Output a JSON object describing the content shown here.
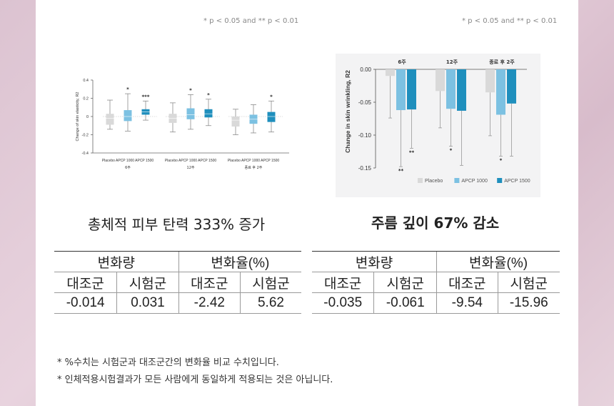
{
  "p_note_left": "* p < 0.05 and ** p < 0.01",
  "p_note_right": "* p < 0.05 and ** p < 0.01",
  "colors": {
    "placebo": "#d9d9d9",
    "apcp1000": "#7cc1e2",
    "apcp1500": "#1f8fbd",
    "whisker": "#8c8c8c"
  },
  "chart_data": [
    {
      "type": "box",
      "ylabel": "Change of skin elasticity, R2",
      "ylim": [
        -0.4,
        0.4
      ],
      "yticks": [
        "0.4",
        "0.2",
        "0",
        "-0.2",
        "-0.4"
      ],
      "group_labels": [
        "6주",
        "12주",
        "종료 후 2주"
      ],
      "category_labels": [
        "Placebo APCP 1000 APCP 1500",
        "Placebo APCP 1000 APCP 1500",
        "Placebo APCP 1000 APCP 1500"
      ],
      "series_names": [
        "Placebo",
        "APCP 1000",
        "APCP 1500"
      ],
      "boxes": [
        [
          {
            "min": -0.14,
            "q1": -0.09,
            "median": -0.02,
            "q3": 0.03,
            "max": 0.18,
            "sig": ""
          },
          {
            "min": -0.16,
            "q1": -0.05,
            "median": 0.0,
            "q3": 0.07,
            "max": 0.25,
            "sig": "*"
          },
          {
            "min": -0.04,
            "q1": 0.02,
            "median": 0.05,
            "q3": 0.08,
            "max": 0.17,
            "sig": "***"
          }
        ],
        [
          {
            "min": -0.17,
            "q1": -0.07,
            "median": -0.02,
            "q3": 0.03,
            "max": 0.15,
            "sig": ""
          },
          {
            "min": -0.14,
            "q1": -0.03,
            "median": 0.02,
            "q3": 0.09,
            "max": 0.24,
            "sig": "*"
          },
          {
            "min": -0.1,
            "q1": -0.01,
            "median": 0.03,
            "q3": 0.08,
            "max": 0.19,
            "sig": "*"
          }
        ],
        [
          {
            "min": -0.2,
            "q1": -0.11,
            "median": -0.04,
            "q3": 0.0,
            "max": 0.08,
            "sig": ""
          },
          {
            "min": -0.18,
            "q1": -0.08,
            "median": -0.03,
            "q3": 0.02,
            "max": 0.13,
            "sig": ""
          },
          {
            "min": -0.17,
            "q1": -0.06,
            "median": 0.0,
            "q3": 0.05,
            "max": 0.17,
            "sig": "*"
          }
        ]
      ]
    },
    {
      "type": "bar",
      "ylabel": "Change in skin wrinkling, R2",
      "ylim": [
        -0.15,
        0.0
      ],
      "yticks": [
        "0.00",
        "-0.05",
        "-0.10",
        "-0.15"
      ],
      "categories": [
        "6주",
        "12주",
        "종료 후 2주"
      ],
      "series": [
        {
          "name": "Placebo",
          "values": [
            -0.01,
            -0.033,
            -0.035
          ],
          "err_low": [
            -0.074,
            -0.089,
            -0.101
          ],
          "sig": [
            "",
            "",
            ""
          ]
        },
        {
          "name": "APCP 1000",
          "values": [
            -0.062,
            -0.06,
            -0.069
          ],
          "err_low": [
            -0.148,
            -0.117,
            -0.132
          ],
          "sig": [
            "**",
            "*",
            "*"
          ]
        },
        {
          "name": "APCP 1500",
          "values": [
            -0.061,
            -0.063,
            -0.052
          ],
          "err_low": [
            -0.12,
            -0.146,
            -0.132
          ],
          "sig": [
            "**",
            "",
            ""
          ]
        }
      ]
    }
  ],
  "caption_left": "총체적 피부 탄력 333% 증가",
  "caption_right": "주름 깊이 67% 감소",
  "table_left": {
    "headers": [
      "변화량",
      "변화율(%)"
    ],
    "subheaders": [
      "대조군",
      "시험군",
      "대조군",
      "시험군"
    ],
    "values": [
      "-0.014",
      "0.031",
      "-2.42",
      "5.62"
    ]
  },
  "table_right": {
    "headers": [
      "변화량",
      "변화율(%)"
    ],
    "subheaders": [
      "대조군",
      "시험군",
      "대조군",
      "시험군"
    ],
    "values": [
      "-0.035",
      "-0.061",
      "-9.54",
      "-15.96"
    ]
  },
  "footnotes": [
    "* %수치는 시험군과 대조군간의 변화율 비교 수치입니다.",
    "* 인체적용시험결과가 모든 사람에게 동일하게 적용되는 것은 아닙니다."
  ]
}
